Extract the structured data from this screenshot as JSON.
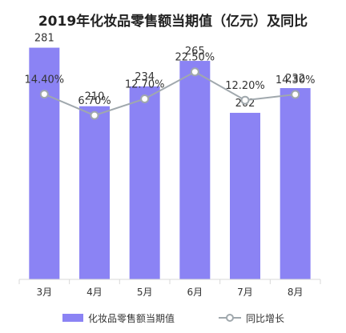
{
  "chart_data": {
    "type": "bar",
    "title": "2019年化妆品零售额当期值（亿元）及同比",
    "categories": [
      "3月",
      "4月",
      "5月",
      "6月",
      "7月",
      "8月"
    ],
    "series": [
      {
        "name": "化妆品零售额当期值",
        "type": "bar",
        "values": [
          281,
          210,
          234,
          265,
          202,
          232
        ],
        "labels": [
          "281",
          "210",
          "234",
          "265",
          "202",
          "232"
        ],
        "color": "#8b83f4"
      },
      {
        "name": "同比增长",
        "type": "line",
        "values": [
          14.4,
          6.7,
          12.7,
          22.5,
          12.2,
          14.3
        ],
        "labels": [
          "14.40%",
          "6.70%",
          "12.70%",
          "22.50%",
          "12.20%",
          "14.30%"
        ],
        "color": "#a0a8ad"
      }
    ],
    "bar_axis_range": [
      0,
      300
    ],
    "line_axis_range": [
      5,
      23
    ],
    "grid": false,
    "legend_position": "bottom"
  }
}
